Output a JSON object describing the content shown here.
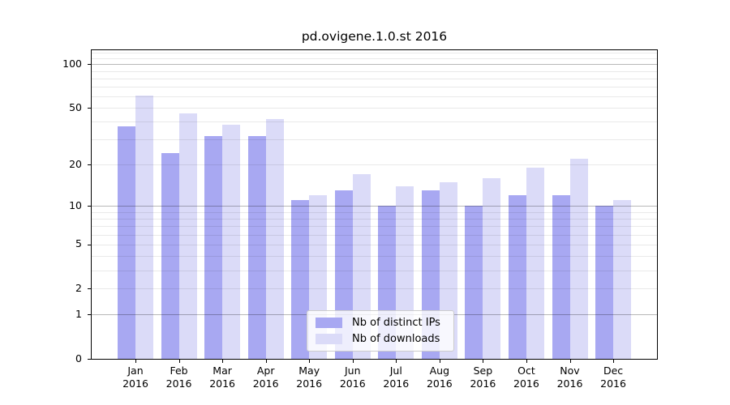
{
  "chart_data": {
    "type": "bar",
    "title": "pd.ovigene.1.0.st 2016",
    "categories": [
      "Jan 2016",
      "Feb 2016",
      "Mar 2016",
      "Apr 2016",
      "May 2016",
      "Jun 2016",
      "Jul 2016",
      "Aug 2016",
      "Sep 2016",
      "Oct 2016",
      "Nov 2016",
      "Dec 2016"
    ],
    "series": [
      {
        "name": "Nb of distinct IPs",
        "color": "#a8a8f2",
        "values": [
          37,
          24,
          32,
          32,
          11,
          13,
          10,
          13,
          10,
          12,
          12,
          10
        ]
      },
      {
        "name": "Nb of downloads",
        "color": "#dbdbf8",
        "values": [
          61,
          46,
          38,
          42,
          12,
          17,
          14,
          15,
          16,
          19,
          22,
          11
        ]
      }
    ],
    "yscale": "log1p",
    "ylim": [
      0,
      125
    ],
    "ytick_labels": [
      "0",
      "1",
      "2",
      "5",
      "10",
      "20",
      "50",
      "100"
    ],
    "yticks": [
      0,
      1,
      2,
      5,
      10,
      20,
      50,
      100
    ],
    "major_gridlines": [
      1,
      10,
      100
    ],
    "minor_gridlines": [
      2,
      3,
      4,
      5,
      6,
      7,
      8,
      9,
      20,
      30,
      40,
      50,
      60,
      70,
      80,
      90,
      110,
      120
    ],
    "grid": true,
    "legend_position": "lower center",
    "xlabel": "",
    "ylabel": ""
  }
}
